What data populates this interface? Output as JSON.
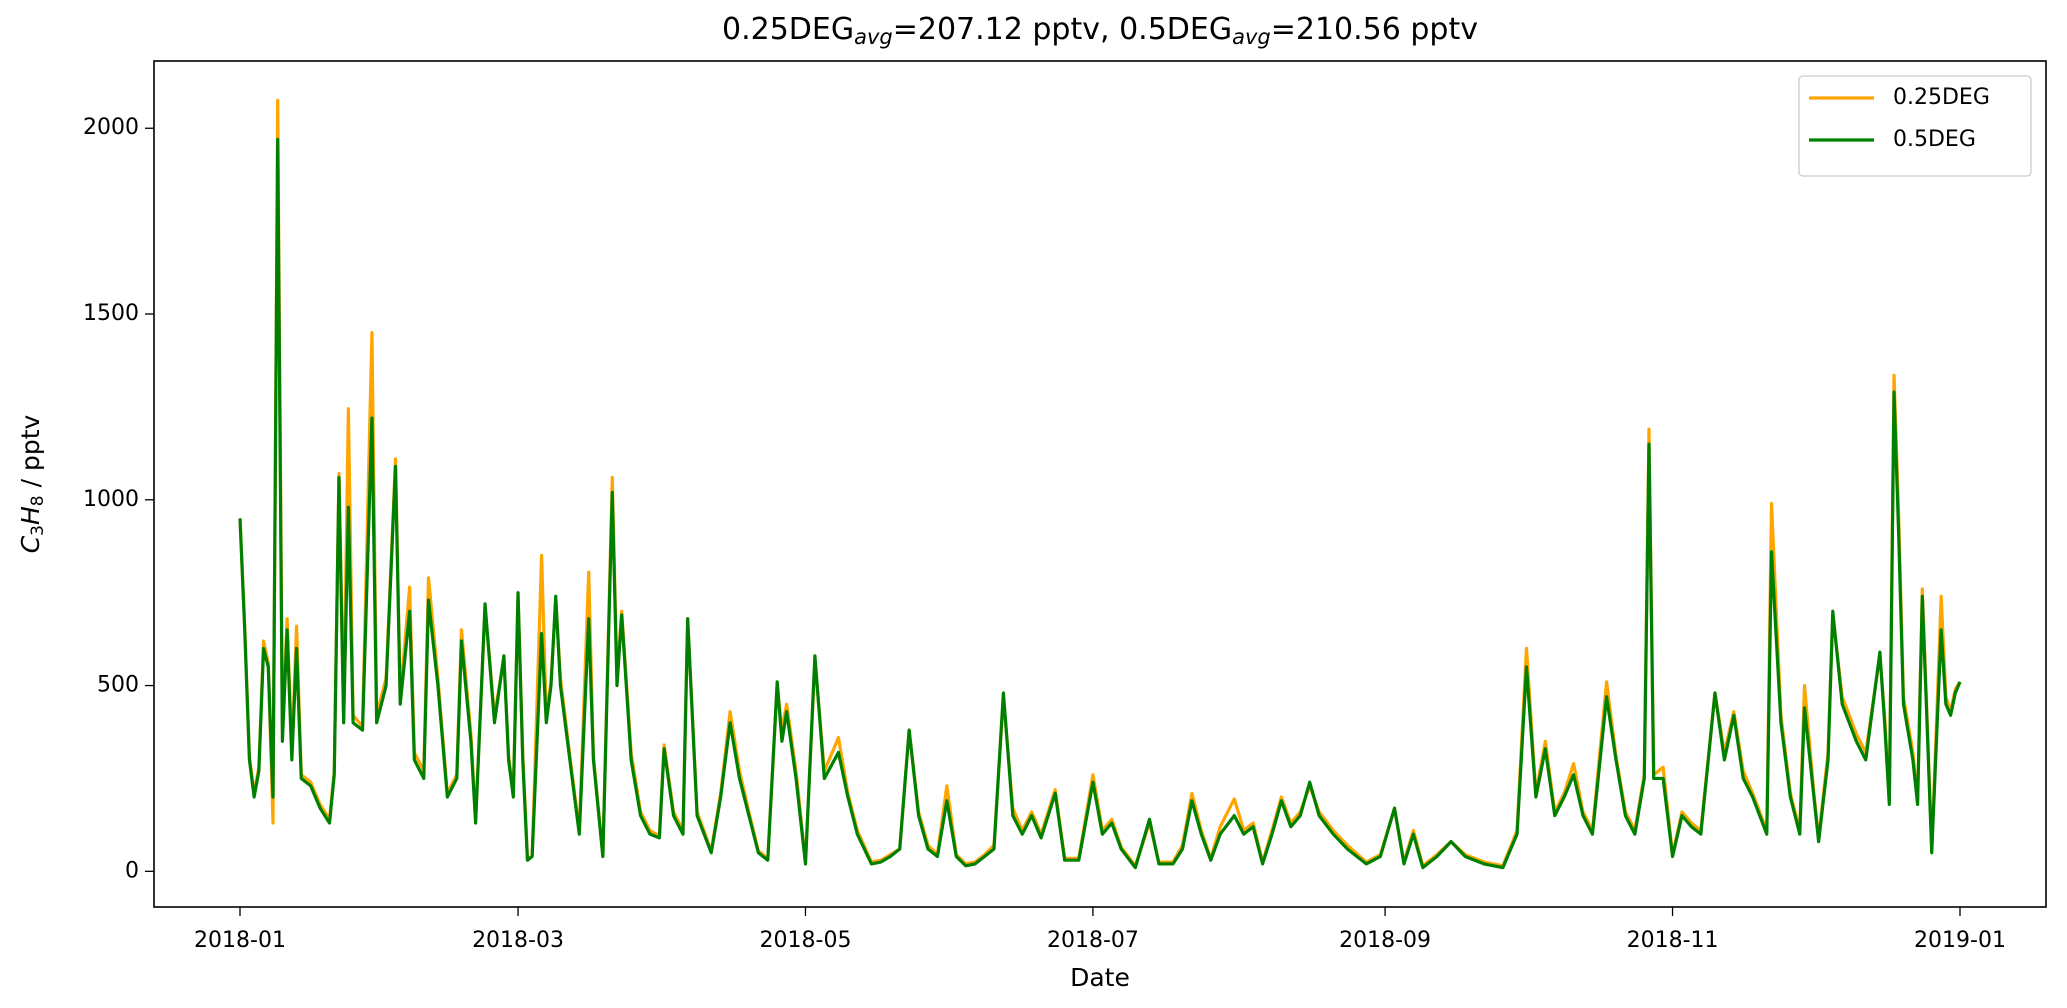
{
  "chart_data": {
    "type": "line",
    "title": [
      "0.25DEG",
      "avg",
      "=207.12 pptv, 0.5DEG",
      "avg",
      "=210.56 pptv"
    ],
    "xlabel": "Date",
    "ylabel": [
      "C",
      "3",
      "H",
      "8",
      " / pptv"
    ],
    "x": [
      0,
      1,
      2,
      3,
      4,
      5,
      6,
      7,
      8,
      9,
      10,
      11,
      12,
      13,
      15,
      17,
      19,
      20,
      21,
      22,
      23,
      24,
      26,
      28,
      29,
      31,
      33,
      34,
      36,
      37,
      39,
      40,
      42,
      44,
      46,
      47,
      49,
      50,
      52,
      54,
      56,
      57,
      58,
      59,
      60,
      61,
      62,
      64,
      65,
      66,
      67,
      68,
      70,
      72,
      74,
      75,
      77,
      79,
      80,
      81,
      83,
      85,
      87,
      89,
      90,
      92,
      94,
      95,
      97,
      100,
      102,
      104,
      106,
      108,
      110,
      112,
      114,
      115,
      116,
      118,
      120,
      122,
      124,
      127,
      129,
      131,
      134,
      136,
      138,
      140,
      142,
      144,
      146,
      148,
      150,
      152,
      154,
      156,
      158,
      160,
      162,
      164,
      166,
      168,
      170,
      173,
      175,
      178,
      181,
      183,
      185,
      187,
      190,
      193,
      195,
      198,
      200,
      202,
      204,
      206,
      208,
      211,
      213,
      215,
      217,
      219,
      221,
      223,
      225,
      227,
      229,
      232,
      235,
      239,
      242,
      245,
      247,
      249,
      251,
      254,
      257,
      260,
      264,
      268,
      271,
      273,
      275,
      277,
      279,
      281,
      283,
      285,
      287,
      290,
      292,
      294,
      296,
      298,
      299,
      300,
      302,
      304,
      306,
      308,
      310,
      313,
      315,
      317,
      319,
      321,
      324,
      325,
      327,
      329,
      331,
      332,
      334,
      335,
      337,
      338,
      340,
      343,
      345,
      348,
      349,
      350,
      351,
      352,
      353,
      355,
      356,
      357,
      358,
      359,
      361,
      362,
      363,
      364,
      365
    ],
    "series": [
      {
        "name": "0.25DEG",
        "color": "#ffa500",
        "values": [
          950,
          660,
          310,
          210,
          280,
          620,
          560,
          130,
          2075,
          380,
          680,
          320,
          660,
          260,
          240,
          180,
          140,
          270,
          1070,
          410,
          1245,
          420,
          390,
          1450,
          420,
          520,
          1110,
          470,
          765,
          320,
          270,
          790,
          520,
          210,
          260,
          650,
          370,
          140,
          710,
          420,
          570,
          310,
          210,
          740,
          320,
          35,
          40,
          850,
          420,
          510,
          730,
          520,
          310,
          110,
          805,
          310,
          40,
          1060,
          520,
          700,
          320,
          160,
          110,
          95,
          340,
          160,
          110,
          680,
          160,
          55,
          210,
          430,
          270,
          160,
          55,
          35,
          500,
          380,
          450,
          270,
          25,
          570,
          270,
          360,
          210,
          110,
          25,
          30,
          45,
          60,
          380,
          160,
          70,
          45,
          230,
          45,
          20,
          25,
          45,
          70,
          470,
          170,
          110,
          160,
          100,
          220,
          35,
          35,
          260,
          110,
          140,
          65,
          15,
          130,
          25,
          25,
          70,
          210,
          110,
          35,
          120,
          195,
          110,
          130,
          25,
          110,
          200,
          130,
          160,
          230,
          160,
          110,
          70,
          25,
          45,
          170,
          25,
          110,
          15,
          45,
          80,
          45,
          25,
          15,
          110,
          600,
          210,
          350,
          160,
          210,
          290,
          160,
          110,
          510,
          310,
          160,
          110,
          260,
          1190,
          260,
          280,
          45,
          160,
          130,
          110,
          480,
          320,
          430,
          270,
          210,
          110,
          990,
          420,
          210,
          110,
          500,
          210,
          90,
          320,
          690,
          470,
          370,
          320,
          580,
          420,
          190,
          1335,
          950,
          470,
          320,
          190,
          760,
          420,
          55,
          740,
          470,
          430,
          490,
          510
        ]
      },
      {
        "name": "0.5DEG",
        "color": "#008000",
        "values": [
          950,
          650,
          300,
          200,
          270,
          600,
          550,
          200,
          1970,
          350,
          650,
          300,
          600,
          250,
          230,
          170,
          130,
          260,
          1060,
          400,
          980,
          400,
          380,
          1220,
          400,
          500,
          1090,
          450,
          700,
          300,
          250,
          730,
          500,
          200,
          250,
          620,
          350,
          130,
          720,
          400,
          580,
          300,
          200,
          750,
          300,
          30,
          40,
          640,
          400,
          500,
          740,
          500,
          300,
          100,
          680,
          300,
          40,
          1020,
          500,
          690,
          300,
          150,
          100,
          90,
          330,
          150,
          100,
          680,
          150,
          50,
          200,
          400,
          250,
          150,
          50,
          30,
          510,
          350,
          430,
          250,
          20,
          580,
          250,
          320,
          200,
          100,
          20,
          25,
          40,
          60,
          380,
          150,
          60,
          40,
          190,
          40,
          15,
          20,
          40,
          60,
          480,
          150,
          100,
          150,
          90,
          210,
          30,
          30,
          240,
          100,
          130,
          60,
          10,
          140,
          20,
          20,
          60,
          190,
          100,
          30,
          100,
          150,
          100,
          120,
          20,
          100,
          190,
          120,
          150,
          240,
          150,
          100,
          60,
          20,
          40,
          170,
          20,
          100,
          10,
          40,
          80,
          40,
          20,
          10,
          100,
          550,
          200,
          330,
          150,
          200,
          260,
          150,
          100,
          470,
          300,
          150,
          100,
          250,
          1150,
          250,
          250,
          40,
          150,
          120,
          100,
          480,
          300,
          420,
          250,
          200,
          100,
          860,
          400,
          200,
          100,
          440,
          200,
          80,
          300,
          700,
          450,
          350,
          300,
          590,
          400,
          180,
          1290,
          900,
          450,
          300,
          180,
          740,
          400,
          50,
          650,
          450,
          420,
          480,
          510
        ]
      }
    ],
    "xlim": [
      -18.25,
      383.25
    ],
    "xticks": [
      {
        "value": 0,
        "label": "2018-01"
      },
      {
        "value": 59,
        "label": "2018-03"
      },
      {
        "value": 120,
        "label": "2018-05"
      },
      {
        "value": 181,
        "label": "2018-07"
      },
      {
        "value": 243,
        "label": "2018-09"
      },
      {
        "value": 304,
        "label": "2018-11"
      },
      {
        "value": 365,
        "label": "2019-01"
      }
    ],
    "ylim": [
      -96,
      2181
    ],
    "yticks": [
      0,
      500,
      1000,
      1500,
      2000
    ],
    "legend": "upper right",
    "grid": false
  }
}
